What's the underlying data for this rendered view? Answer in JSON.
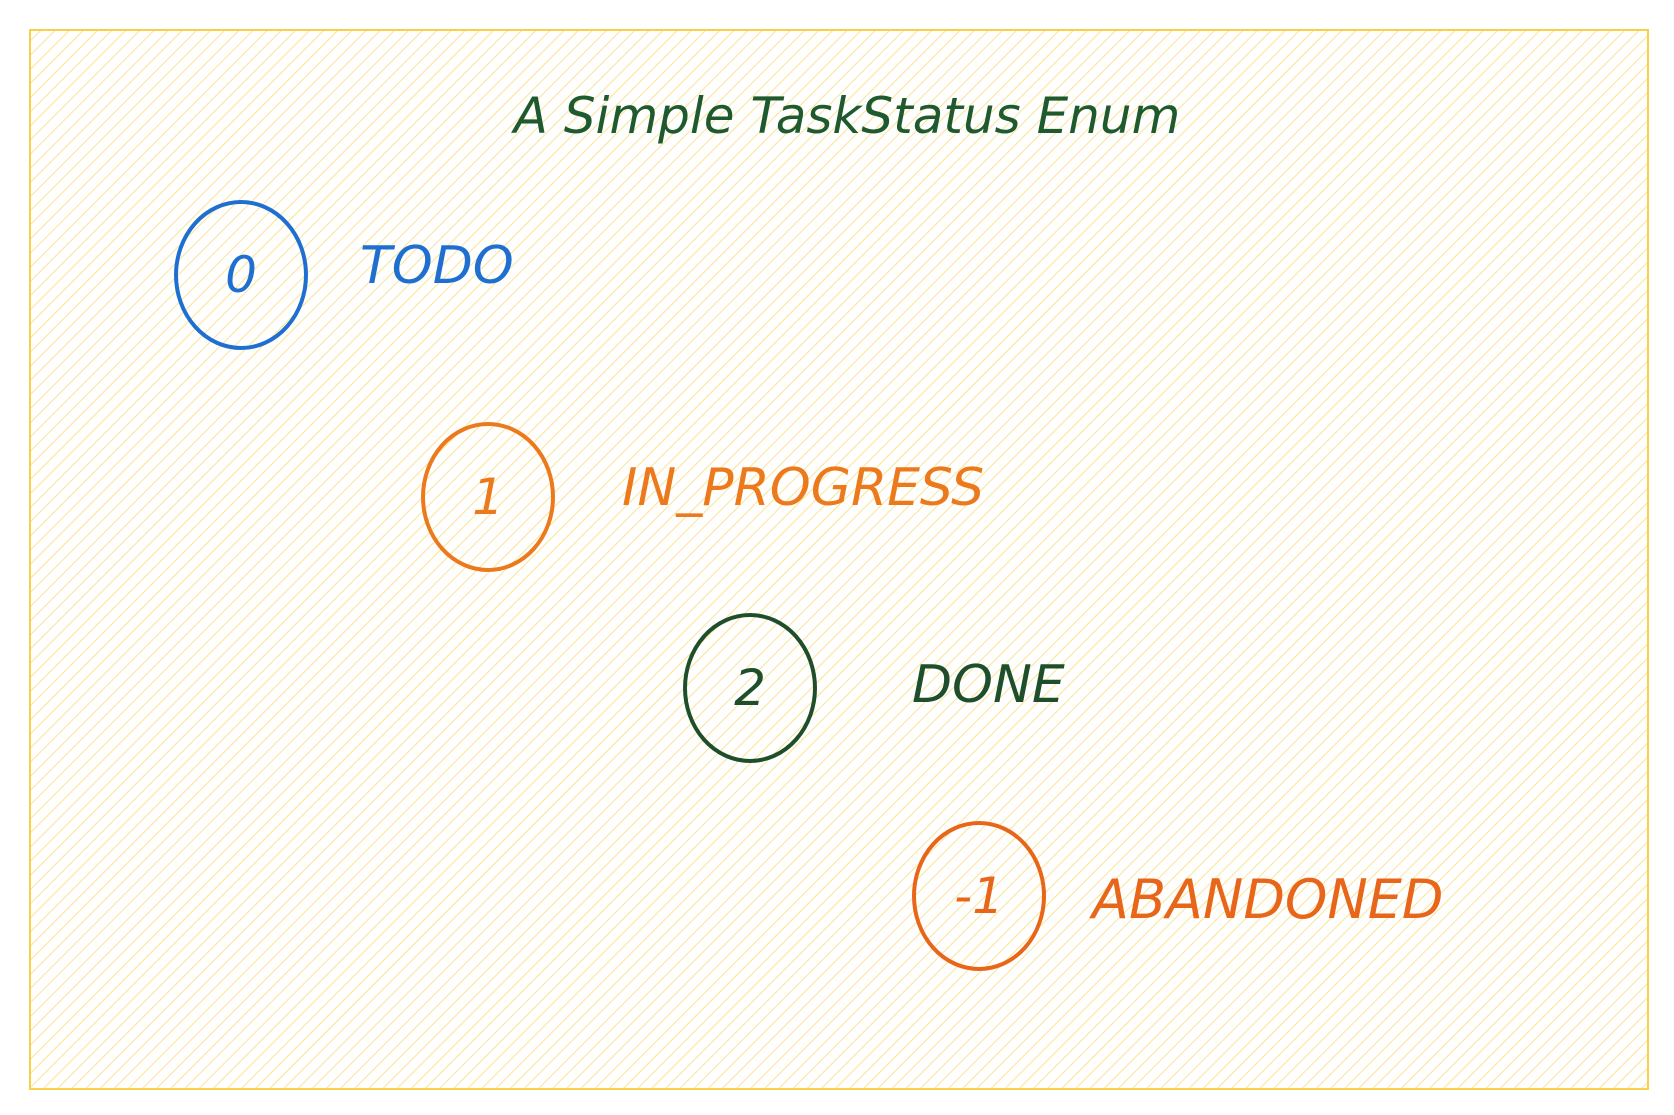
{
  "diagram": {
    "title": "A Simple TaskStatus Enum",
    "colors": {
      "frame_stroke": "#f7d14a",
      "hatch": "#f7d14a",
      "title": "#1f5a2e"
    },
    "items": [
      {
        "value": "0",
        "label": "TODO",
        "color": "#1f6fd1"
      },
      {
        "value": "1",
        "label": "IN_PROGRESS",
        "color": "#ec7a1c"
      },
      {
        "value": "2",
        "label": "DONE",
        "color": "#1f4f2a"
      },
      {
        "value": "-1",
        "label": "ABANDONED",
        "color": "#e8661a"
      }
    ]
  }
}
